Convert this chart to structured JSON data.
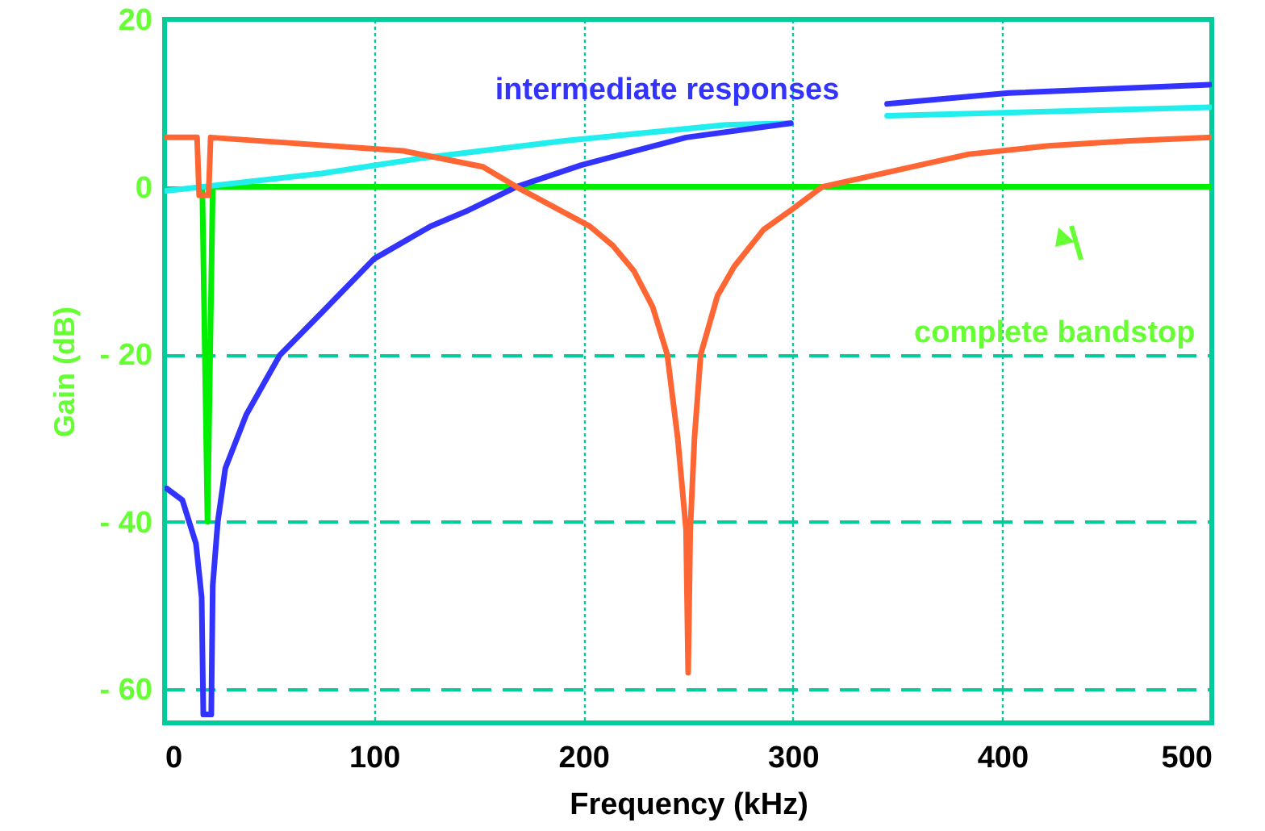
{
  "chart_data": {
    "type": "line",
    "xlabel": "Frequency (kHz)",
    "ylabel": "Gain (dB)",
    "xlim": [
      0,
      500
    ],
    "ylim": [
      -64,
      20
    ],
    "xticks": [
      0,
      100,
      200,
      300,
      400,
      500
    ],
    "yticks": [
      {
        "value": -60,
        "label": "- 60"
      },
      {
        "value": -40,
        "label": "- 40"
      },
      {
        "value": -20,
        "label": "- 20"
      },
      0,
      20
    ],
    "grid": true,
    "line_style": "solid",
    "marker": "none",
    "annotations": [
      "intermediate responses",
      "complete bandstop"
    ],
    "series": [
      {
        "color": "#00ee00",
        "x": [
          18,
          20.5,
          23,
          500
        ],
        "values": [
          0,
          -40,
          0,
          0
        ]
      },
      {
        "color": "#22eeee",
        "x": [
          0,
          75,
          122,
          191,
          268,
          299,
          320,
          345,
          499
        ],
        "values": [
          -0.5,
          1.6,
          3.4,
          5.5,
          7.4,
          7.6,
          null,
          8.5,
          9.5
        ]
      },
      {
        "color": "#3333ff",
        "x": [
          1,
          8.5,
          15,
          17.7,
          18.5,
          22.3,
          23,
          25.4,
          29,
          39,
          55,
          75.5,
          100,
          127,
          145,
          168,
          199,
          249,
          299,
          320,
          345,
          403,
          499
        ],
        "values": [
          -36,
          -37.4,
          -42.6,
          -49,
          -63,
          -63,
          -47.6,
          -40,
          -33.6,
          -27.2,
          -20.1,
          -14.9,
          -8.6,
          -4.7,
          -2.8,
          0,
          2.6,
          5.9,
          7.6,
          null,
          9.9,
          11.2,
          12.2
        ]
      },
      {
        "color": "#ff6633",
        "x": [
          0,
          15.5,
          16.5,
          21,
          22,
          114,
          152,
          168,
          203,
          214,
          224,
          233,
          240,
          245,
          249,
          250,
          251,
          253,
          256,
          264,
          272,
          286,
          299,
          314,
          384,
          422,
          461,
          500
        ],
        "values": [
          5.9,
          5.9,
          -1,
          -1,
          5.9,
          4.3,
          2.4,
          0,
          -4.7,
          -7,
          -10,
          -14.3,
          -20,
          -30,
          -41,
          -58,
          -41,
          -30,
          -20,
          -13,
          -9.5,
          -5.1,
          -2.8,
          0,
          3.9,
          4.9,
          5.5,
          5.9
        ]
      }
    ]
  }
}
